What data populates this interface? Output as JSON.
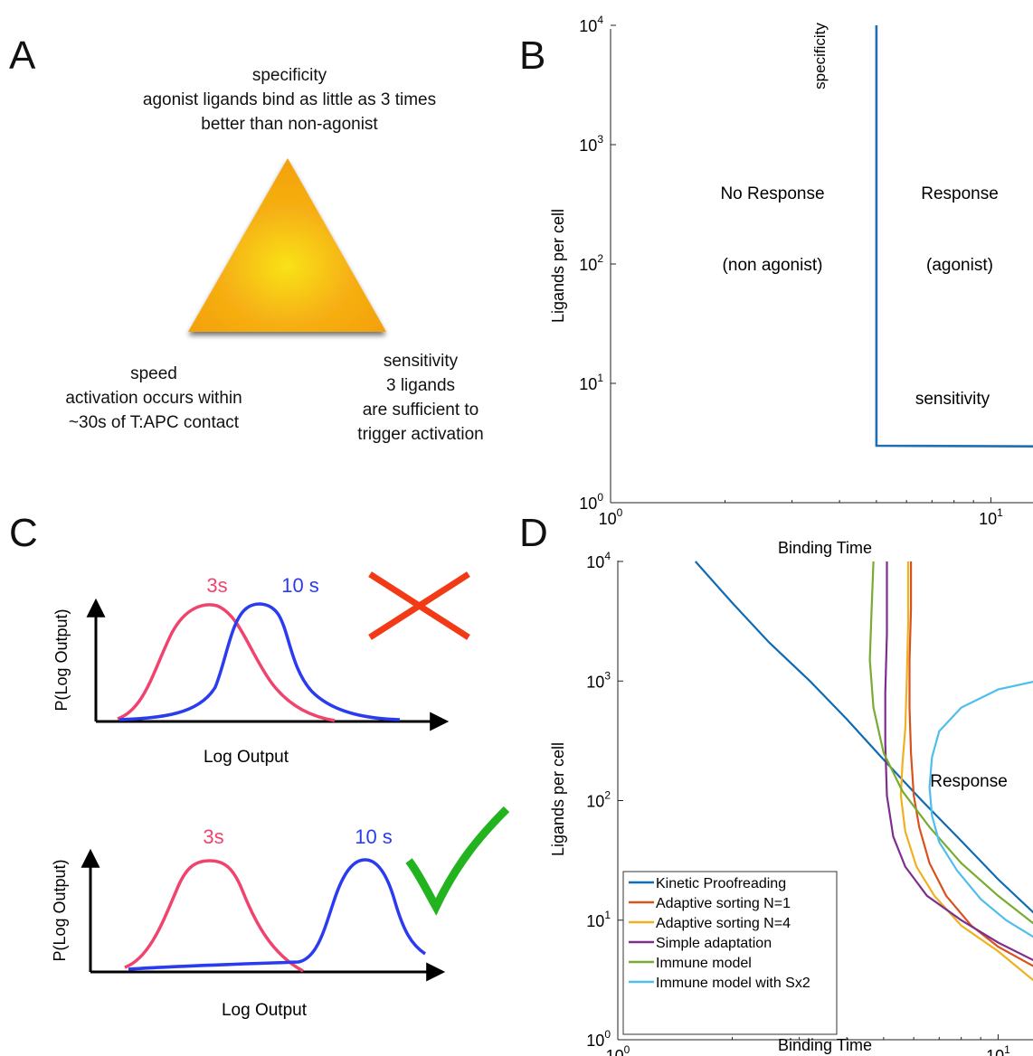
{
  "panels": {
    "a": {
      "letter": "A",
      "top": [
        "specificity",
        "agonist ligands bind as little as 3 times",
        "better than non-agonist"
      ],
      "left": [
        "speed",
        "activation occurs within",
        "~30s of T:APC contact"
      ],
      "right": [
        "sensitivity",
        "3 ligands",
        "are sufficient to",
        "trigger activation"
      ],
      "colors": {
        "triangle_top": "#F6B012",
        "triangle_center": "#F9E21A",
        "triangle_edge": "#F3A10C"
      }
    },
    "b": {
      "letter": "B",
      "regions": [
        {
          "title": "No Response",
          "subtitle": "(non agonist)"
        },
        {
          "title": "Response",
          "subtitle": "(agonist)"
        }
      ],
      "vertical_label": "specificity",
      "horizontal_label": "sensitivity"
    },
    "c": {
      "letter": "C",
      "top_plot": {
        "ylabel": "P(Log Output)",
        "xlabel": "Log Output",
        "label_3s": "3s",
        "label_10s": "10 s",
        "mark": "cross-icon"
      },
      "bottom_plot": {
        "ylabel": "P(Log Output)",
        "xlabel": "Log Output",
        "label_3s": "3s",
        "label_10s": "10 s",
        "mark": "check-icon"
      },
      "colors": {
        "3s": "#F0436E",
        "10s": "#2B3BF0",
        "cross": "#F23A16",
        "check": "#22B31E"
      }
    },
    "d": {
      "letter": "D",
      "region_label": "Response"
    }
  },
  "chart_data": [
    {
      "type": "line",
      "panel": "B",
      "xlabel": "Binding Time",
      "ylabel": "Ligands per cell",
      "xscale": "log",
      "yscale": "log",
      "xlim": [
        1,
        20
      ],
      "ylim": [
        1,
        10000
      ],
      "xticks": [
        {
          "base": "10",
          "exp": "0"
        },
        {
          "base": "10",
          "exp": "1"
        }
      ],
      "yticks": [
        {
          "base": "10",
          "exp": "0"
        },
        {
          "base": "10",
          "exp": "1"
        },
        {
          "base": "10",
          "exp": "2"
        },
        {
          "base": "10",
          "exp": "3"
        },
        {
          "base": "10",
          "exp": "4"
        }
      ],
      "series": [
        {
          "color": "#1F6FB3",
          "x": [
            5,
            5,
            20
          ],
          "y": [
            10000,
            3,
            2.95
          ]
        }
      ]
    },
    {
      "type": "line",
      "panel": "D",
      "xlabel": "Binding Time",
      "ylabel": "Ligands per cell",
      "xscale": "log",
      "yscale": "log",
      "xlim": [
        1,
        20
      ],
      "ylim": [
        1,
        10000
      ],
      "xticks": [
        {
          "base": "10",
          "exp": "0"
        },
        {
          "base": "10",
          "exp": "1"
        }
      ],
      "yticks": [
        {
          "base": "10",
          "exp": "0"
        },
        {
          "base": "10",
          "exp": "1"
        },
        {
          "base": "10",
          "exp": "2"
        },
        {
          "base": "10",
          "exp": "3"
        },
        {
          "base": "10",
          "exp": "4"
        }
      ],
      "legend_position": "bottom-left",
      "series": [
        {
          "name": "Kinetic Proofreading",
          "color": "#0F6BB3",
          "x": [
            1.6,
            2.0,
            2.5,
            3.2,
            4.0,
            5.0,
            6.3,
            8.0,
            10.0,
            12.6,
            15.8,
            20.0
          ],
          "y": [
            10000,
            4500,
            2100,
            1000,
            480,
            220,
            100,
            46,
            22,
            11,
            6.0,
            3.5
          ]
        },
        {
          "name": "Adaptive sorting N=1",
          "color": "#D9521B",
          "x": [
            5.9,
            5.9,
            5.85,
            5.85,
            5.9,
            6.0,
            6.2,
            6.6,
            7.3,
            8.5,
            10.0,
            12.6,
            15.8,
            20.0
          ],
          "y": [
            10000,
            4000,
            1500,
            600,
            250,
            110,
            60,
            30,
            16,
            9,
            6,
            4,
            3,
            2.2
          ]
        },
        {
          "name": "Adaptive sorting N=4",
          "color": "#F0B11E",
          "x": [
            5.8,
            5.8,
            5.75,
            5.7,
            5.6,
            5.55,
            5.7,
            6.1,
            6.8,
            8.0,
            10.0,
            12.6,
            15.8,
            20.0
          ],
          "y": [
            10000,
            3000,
            1000,
            400,
            200,
            110,
            55,
            28,
            16,
            9,
            5.5,
            3,
            2,
            1.4
          ]
        },
        {
          "name": "Simple adaptation",
          "color": "#7E2F8E",
          "x": [
            5.1,
            5.1,
            5.05,
            5.05,
            5.1,
            5.3,
            5.7,
            6.5,
            8.0,
            10.0,
            12.6,
            15.8,
            20.0
          ],
          "y": [
            10000,
            2500,
            800,
            300,
            110,
            50,
            28,
            16,
            10,
            6.5,
            4.5,
            3.2,
            2.8
          ]
        },
        {
          "name": "Immune model",
          "color": "#77AC30",
          "x": [
            4.7,
            4.65,
            4.6,
            4.7,
            5.0,
            5.6,
            6.6,
            8.0,
            10.0,
            12.6,
            15.8,
            20.0
          ],
          "y": [
            10000,
            4000,
            1500,
            600,
            250,
            120,
            60,
            30,
            16,
            9,
            5.5,
            3.6
          ]
        },
        {
          "name": "Immune model with Sx2",
          "color": "#4DBEEE",
          "x": [
            20.0,
            15.8,
            12.6,
            10.0,
            8.0,
            7.0,
            6.7,
            6.6,
            6.7,
            7.0,
            7.8,
            9.0,
            10.5,
            12.6,
            15.8,
            20.0
          ],
          "y": [
            1350,
            1200,
            1000,
            850,
            600,
            380,
            230,
            130,
            75,
            45,
            26,
            15,
            10,
            7,
            5,
            3.8
          ]
        }
      ]
    }
  ]
}
